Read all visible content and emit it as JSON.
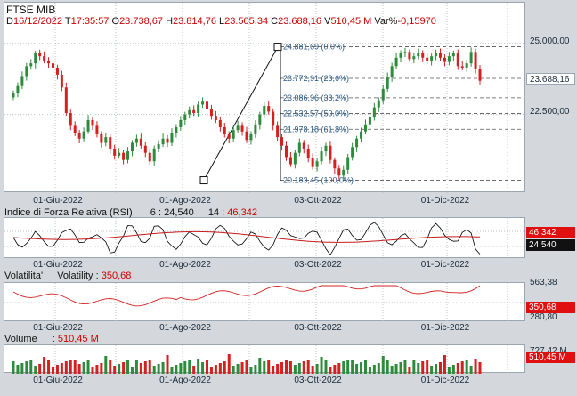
{
  "header": {
    "title": "FTSE MIB",
    "d_label": "D",
    "date": "16/12/2022",
    "t_label": "T",
    "time": "17:35:57",
    "o_label": "O",
    "open": "23.738,67",
    "h_label": "H",
    "high": "23.814,76",
    "l_label": "L",
    "low": "23.505,34",
    "c_label": "C",
    "close": "23.688,16",
    "v_label": "V",
    "volume": "510,45 M",
    "var_label": "Var%",
    "var": "-0,15970"
  },
  "price_panel": {
    "y_ticks": [
      "25.000,00",
      "22.500,00"
    ],
    "last_value": "23.688,16",
    "fib_levels": [
      {
        "value": 24881.69,
        "text": "24.881,69 (0,0%)"
      },
      {
        "value": 23772.91,
        "text": "23.772,91 (23,6%)"
      },
      {
        "value": 23086.96,
        "text": "23.086,96 (38,2%)"
      },
      {
        "value": 22532.57,
        "text": "22.532,57 (50,0%)"
      },
      {
        "value": 21978.18,
        "text": "21.978,18 (61,8%)"
      },
      {
        "value": 20183.45,
        "text": "20.183,45 (100,0%)"
      }
    ]
  },
  "x_ticks": [
    "01-Giu-2022",
    "01-Ago-2022",
    "03-Ott-2022",
    "01-Dic-2022"
  ],
  "rsi": {
    "title": "Indice di Forza Relativa (RSI)",
    "p1": "6",
    "v1": "24,540",
    "p2": "14",
    "v2": "46,342",
    "tag_red": "46,342",
    "tag_black": "24,540"
  },
  "volatility": {
    "title": "Volatilita'",
    "label": "Volatility",
    "value": "350,68",
    "y_top": "563,38",
    "y_bottom": "280,80",
    "tag": "350,68"
  },
  "volume": {
    "title": "Volume",
    "value": "510,45 M",
    "y_top": "727,42 M",
    "tag": "510,45 M"
  },
  "colors": {
    "up": "#2e8b3c",
    "down": "#d42020",
    "rsi": "#000000",
    "rsi_avg": "#c41c1c",
    "fib": "#555555",
    "accent": "#cc0000",
    "tag_bg": "#e01010"
  },
  "chart_data": [
    {
      "type": "candlestick",
      "title": "FTSE MIB",
      "x_ticks": [
        "01-Giu-2022",
        "01-Ago-2022",
        "03-Ott-2022",
        "01-Dic-2022"
      ],
      "y_ticks": [
        25000,
        22500
      ],
      "closes": [
        23250,
        23500,
        23850,
        24200,
        24300,
        24650,
        24550,
        24400,
        24300,
        24150,
        23900,
        23450,
        22550,
        22100,
        21850,
        21650,
        21900,
        22300,
        22100,
        21800,
        21500,
        21700,
        21300,
        21050,
        21150,
        20900,
        21200,
        21500,
        21650,
        21400,
        21150,
        20850,
        21300,
        21450,
        21650,
        21500,
        21850,
        22050,
        22300,
        22500,
        22650,
        22550,
        22850,
        22950,
        22700,
        22450,
        22300,
        22050,
        21800,
        21650,
        21950,
        22100,
        21900,
        21600,
        21800,
        22150,
        22500,
        22800,
        22600,
        22100,
        21700,
        21400,
        21000,
        20750,
        21150,
        21500,
        21300,
        20950,
        20650,
        20850,
        21200,
        21400,
        20900,
        20600,
        20350,
        20550,
        21000,
        21350,
        21650,
        21900,
        22150,
        22400,
        22750,
        23000,
        23400,
        23800,
        24200,
        24500,
        24650,
        24700,
        24450,
        24550,
        24650,
        24500,
        24400,
        24550,
        24650,
        24500,
        24350,
        24550,
        24650,
        24200,
        24150,
        24300,
        24700,
        24100,
        23688
      ]
    },
    {
      "type": "line",
      "title": "Indice di Forza Relativa (RSI)",
      "series": [
        {
          "name": "6",
          "last": 24.54
        },
        {
          "name": "14",
          "last": 46.342
        }
      ]
    },
    {
      "type": "line",
      "title": "Volatilita'",
      "ylim": [
        280.8,
        563.38
      ],
      "series": [
        {
          "name": "Volatility",
          "last": 350.68
        }
      ]
    },
    {
      "type": "bar",
      "title": "Volume",
      "ylim": [
        0,
        727.42
      ],
      "series": [
        {
          "name": "Volume",
          "last": 510.45
        }
      ]
    }
  ]
}
